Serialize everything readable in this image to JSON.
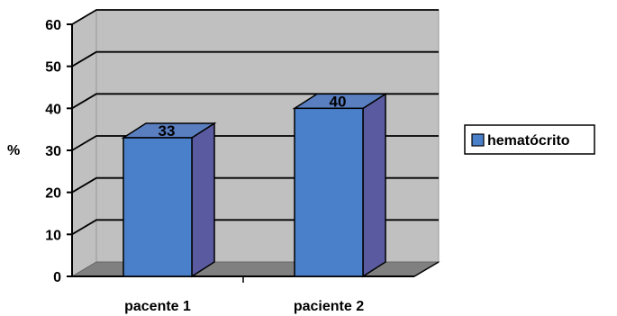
{
  "chart_data": {
    "type": "bar",
    "categories": [
      "pacente 1",
      "paciente 2"
    ],
    "series": [
      {
        "name": "hematócrito",
        "values": [
          33,
          40
        ],
        "color": "#4a7fc9"
      }
    ],
    "ylabel": "%",
    "xlabel": "",
    "ylim": [
      0,
      60
    ],
    "yticks": [
      0,
      10,
      20,
      30,
      40,
      50,
      60
    ],
    "grid": true,
    "legend": "right",
    "colors": {
      "wall": "#c0c0c0",
      "floor": "#808080",
      "bar_front": "#4a7fc9",
      "bar_side": "#5a5aa0",
      "bar_top": "#5a7fc0"
    }
  }
}
